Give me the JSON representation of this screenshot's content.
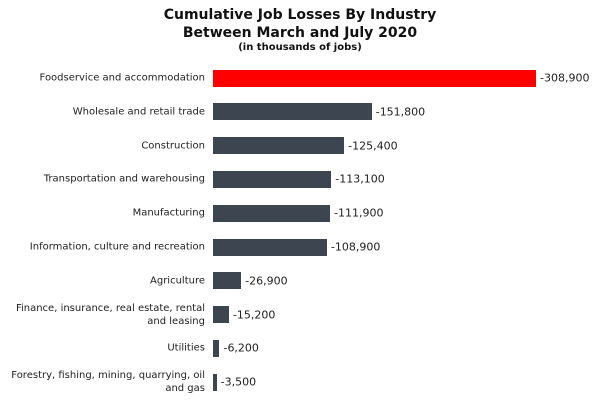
{
  "chart_data": {
    "type": "bar",
    "orientation": "horizontal",
    "title": "Cumulative Job Losses By Industry Between March and July 2020",
    "subtitle": "(in thousands of jobs)",
    "categories": [
      "Foodservice and accommodation",
      "Wholesale and retail trade",
      "Construction",
      "Transportation and warehousing",
      "Manufacturing",
      "Information, culture and recreation",
      "Agriculture",
      "Finance, insurance, real estate, rental and leasing",
      "Utilities",
      "Forestry, fishing, mining, quarrying, oil and gas"
    ],
    "values": [
      -308900,
      -151800,
      -125400,
      -113100,
      -111900,
      -108900,
      -26900,
      -15200,
      -6200,
      -3500
    ],
    "value_labels": [
      "-308,900",
      "-151,800",
      "-125,400",
      "-113,100",
      "-111,900",
      "-108,900",
      "-26,900",
      "-15,200",
      "-6,200",
      "-3,500"
    ],
    "colors": [
      "#ff0000",
      "#3d4550",
      "#3d4550",
      "#3d4550",
      "#3d4550",
      "#3d4550",
      "#3d4550",
      "#3d4550",
      "#3d4550",
      "#3d4550"
    ]
  }
}
